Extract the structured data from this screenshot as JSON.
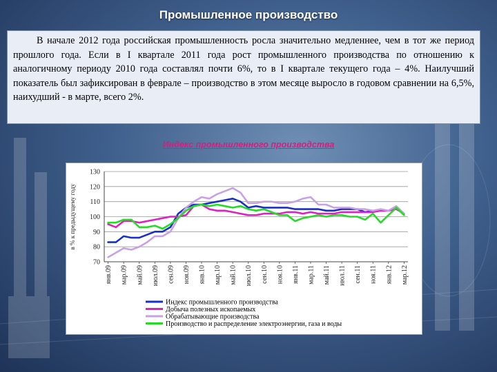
{
  "slide": {
    "title": "Промышленное производство",
    "paragraph": "В начале 2012 года российская промышленность росла значительно медленнее, чем в тот же период прошлого года. Если в I квартале 2011 года рост промышленного производства по отношению к аналогичному периоду 2010 года составлял почти 6%, то в I квартале текущего года – 4%. Наилучший показатель был зафиксирован в феврале – производство в этом месяце выросло в годовом сравнении на 6,5%, наихудший - в марте, всего 2%.",
    "chart_caption": "Индекс промышленного производства"
  },
  "chart_data": {
    "type": "line",
    "title": "",
    "xlabel": "",
    "ylabel": "в % к предыдущему году",
    "ylim": [
      70,
      130
    ],
    "yticks": [
      70,
      80,
      90,
      100,
      110,
      120,
      130
    ],
    "x": [
      "янв.09",
      "фев.09",
      "мар.09",
      "апр.09",
      "май.09",
      "июн.09",
      "июл.09",
      "авг.09",
      "сен.09",
      "окт.09",
      "ноя.09",
      "дек.09",
      "янв.10",
      "фев.10",
      "мар.10",
      "апр.10",
      "май.10",
      "июн.10",
      "июл.10",
      "авг.10",
      "сен.10",
      "окт.10",
      "ноя.10",
      "дек.10",
      "янв.11",
      "фев.11",
      "мар.11",
      "апр.11",
      "май.11",
      "июн.11",
      "июл.11",
      "авг.11",
      "сен.11",
      "окт.11",
      "ноя.11",
      "дек.11",
      "янв.12",
      "фев.12",
      "мар.12"
    ],
    "xtick_labels": [
      "янв.09",
      "мар.09",
      "май.09",
      "июл.09",
      "сен.09",
      "ноя.09",
      "янв.10",
      "мар.10",
      "май.10",
      "июл.10",
      "сен.10",
      "ноя.10",
      "янв.11",
      "мар.11",
      "май.11",
      "июл.11",
      "сен.11",
      "ноя.11",
      "янв.12",
      "мар.12"
    ],
    "grid": true,
    "legend": "bottom",
    "series": [
      {
        "name": "Индекс промышленного производства",
        "color": "#1a2fc8",
        "values": [
          83,
          83,
          87,
          86,
          86,
          88,
          90,
          90,
          93,
          102,
          106,
          108,
          108,
          109,
          110,
          111,
          112,
          110,
          106,
          107,
          106,
          106,
          106,
          106,
          105,
          105,
          105,
          105,
          104,
          104,
          105,
          105,
          105,
          103,
          104,
          104,
          104,
          106,
          102
        ]
      },
      {
        "name": "Добыча полезных ископаемых",
        "color": "#e020c0",
        "values": [
          95,
          93,
          97,
          97,
          96,
          97,
          98,
          99,
          100,
          100,
          101,
          107,
          108,
          105,
          104,
          104,
          103,
          102,
          101,
          101,
          102,
          102,
          102,
          103,
          103,
          102,
          103,
          102,
          102,
          102,
          103,
          103,
          103,
          103,
          103,
          104,
          104,
          105,
          102
        ]
      },
      {
        "name": "Обрабатывающие производства",
        "color": "#c8a0e6",
        "values": [
          73,
          76,
          79,
          78,
          80,
          83,
          87,
          87,
          90,
          99,
          106,
          110,
          113,
          112,
          115,
          117,
          119,
          116,
          109,
          109,
          110,
          110,
          109,
          109,
          110,
          112,
          113,
          108,
          108,
          106,
          106,
          106,
          105,
          105,
          104,
          105,
          104,
          107,
          102
        ]
      },
      {
        "name": "Производство и распределение электроэнергии, газа и воды",
        "color": "#22dd22",
        "values": [
          96,
          96,
          98,
          98,
          93,
          93,
          94,
          92,
          95,
          99,
          104,
          107,
          108,
          107,
          108,
          107,
          106,
          107,
          105,
          104,
          105,
          103,
          101,
          101,
          97,
          99,
          100,
          101,
          100,
          101,
          101,
          100,
          100,
          98,
          102,
          96,
          101,
          106,
          101
        ]
      }
    ]
  }
}
